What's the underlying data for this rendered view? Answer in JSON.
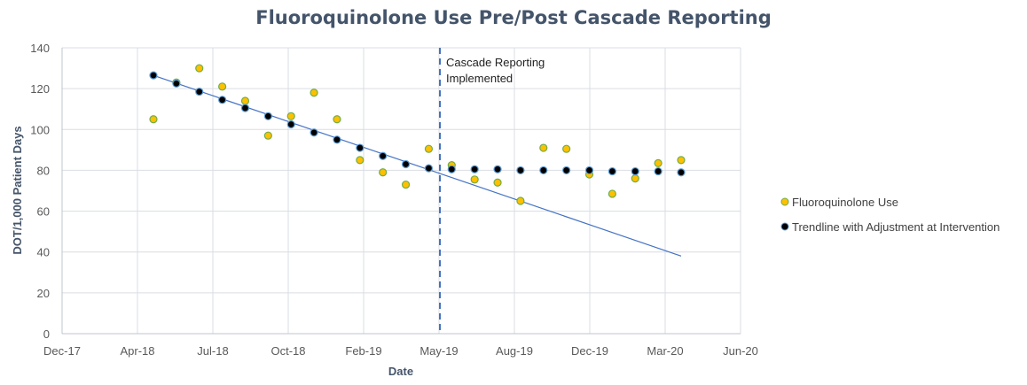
{
  "chart_data": {
    "type": "scatter",
    "title": "Fluoroquinolone Use Pre/Post Cascade Reporting",
    "xlabel": "Date",
    "ylabel": "DOT/1,000 Patient Days",
    "ylim": [
      0,
      140
    ],
    "yticks": [
      0,
      20,
      40,
      60,
      80,
      100,
      120,
      140
    ],
    "xticks": [
      "Dec-17",
      "Apr-18",
      "Jul-18",
      "Oct-18",
      "Feb-19",
      "May-19",
      "Aug-19",
      "Dec-19",
      "Mar-20",
      "Jun-20"
    ],
    "grid": true,
    "legend_position": "right",
    "x": [
      "May-18",
      "Jun-18",
      "Jul-18",
      "Aug-18",
      "Sep-18",
      "Oct-18",
      "Nov-18",
      "Dec-18",
      "Jan-19",
      "Feb-19",
      "Mar-19",
      "Apr-19",
      "May-19",
      "Jun-19",
      "Jul-19",
      "Aug-19",
      "Sep-19",
      "Oct-19",
      "Nov-19",
      "Dec-19",
      "Jan-20",
      "Feb-20",
      "Mar-20",
      "Apr-20"
    ],
    "series": [
      {
        "name": "Fluoroquinolone Use",
        "color": "#ffc000",
        "edge_color": "#70ad47",
        "values": [
          105,
          123,
          130,
          121,
          114,
          97,
          106.5,
          118,
          105,
          85,
          79,
          73,
          90.5,
          82.5,
          75.5,
          74,
          65,
          91,
          90.5,
          78,
          68.5,
          76,
          83.5,
          85
        ]
      },
      {
        "name": "Trendline with Adjustment at Intervention",
        "color": "#000000",
        "edge_color": "#5b9bd5",
        "values": [
          126.5,
          122.5,
          118.5,
          114.5,
          110.5,
          106.5,
          102.5,
          98.5,
          95,
          91,
          87,
          83,
          81,
          80.5,
          80.5,
          80.5,
          80,
          80,
          80,
          80,
          79.5,
          79.5,
          79.5,
          79
        ]
      }
    ],
    "linear_trend": {
      "color": "#4472c4",
      "start": {
        "x": "May-18",
        "y": 126.5
      },
      "end": {
        "x": "Apr-20",
        "y": 38
      }
    },
    "intervention": {
      "x": "May-19",
      "label_line1": "Cascade Reporting",
      "label_line2": "Implemented",
      "color": "#4472c4"
    }
  }
}
